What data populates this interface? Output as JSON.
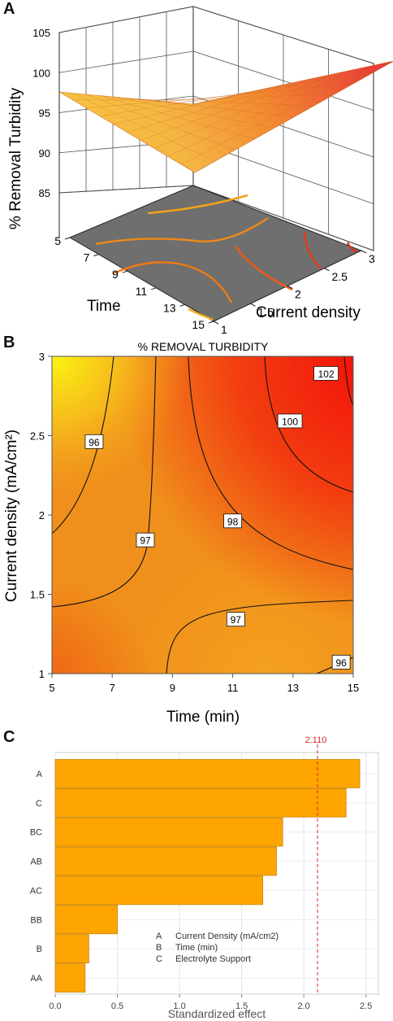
{
  "panel_labels": {
    "a": "A",
    "b": "B",
    "c": "C"
  },
  "chart_data": [
    {
      "type": "surface3d",
      "panel": "A",
      "title": "",
      "zlabel": "% Removal Turbidity",
      "xlabel": "Current density",
      "ylabel": "Time",
      "zticks": [
        85,
        90,
        95,
        100,
        105
      ],
      "xticks": [
        "1",
        "1.5",
        "2",
        "2.5",
        "3"
      ],
      "yticks": [
        "5",
        "7",
        "9",
        "11",
        "13",
        "15"
      ],
      "zlim": [
        85,
        105
      ],
      "corners": [
        {
          "current_density": 1,
          "time": 5,
          "removal": 96.6
        },
        {
          "current_density": 3,
          "time": 5,
          "removal": 95.9
        },
        {
          "current_density": 3,
          "time": 15,
          "removal": 102.4
        },
        {
          "current_density": 1,
          "time": 15,
          "removal": 94.7
        }
      ],
      "colors": {
        "surface_low": "#f7e06a",
        "surface_mid": "#f39a2a",
        "surface_high": "#e8333a",
        "floor": "#6e6e6e"
      }
    },
    {
      "type": "contour",
      "panel": "B",
      "title": "% REMOVAL TURBIDITY",
      "xlabel": "Time (min)",
      "ylabel": "Current density (mA/cm²)",
      "xticks": [
        "5",
        "7",
        "9",
        "11",
        "13",
        "15"
      ],
      "yticks": [
        "1",
        "1.5",
        "2",
        "2.5",
        "3"
      ],
      "xlim": [
        5,
        15
      ],
      "ylim": [
        1,
        3
      ],
      "contour_labels": [
        {
          "label": "102",
          "time": 14.1,
          "current_density": 2.89
        },
        {
          "label": "100",
          "time": 12.9,
          "current_density": 2.59
        },
        {
          "label": "98",
          "time": 11.0,
          "current_density": 1.96
        },
        {
          "label": "97",
          "time": 8.1,
          "current_density": 1.84
        },
        {
          "label": "96",
          "time": 6.4,
          "current_density": 2.46
        },
        {
          "label": "97",
          "time": 11.1,
          "current_density": 1.34
        },
        {
          "label": "96",
          "time": 14.6,
          "current_density": 1.07
        }
      ],
      "colors": {
        "low": "#f8ef1a",
        "mid": "#f39a1e",
        "high": "#f20d0d"
      }
    },
    {
      "type": "bar",
      "panel": "C",
      "orientation": "horizontal",
      "title": "",
      "xlabel": "Standardized effect",
      "ylabel": "",
      "categories": [
        "A",
        "C",
        "BC",
        "AB",
        "AC",
        "BB",
        "B",
        "AA"
      ],
      "values": [
        2.45,
        2.34,
        1.83,
        1.78,
        1.67,
        0.5,
        0.27,
        0.24
      ],
      "xlim": [
        0,
        2.6
      ],
      "xticks": [
        "0.0",
        "0.5",
        "1.0",
        "1.5",
        "2.0",
        "2.5"
      ],
      "reference_line": {
        "value": 2.11,
        "label": "2.110",
        "color": "#d62728"
      },
      "legend": [
        {
          "key": "A",
          "text": "Current Density (mA/cm2)"
        },
        {
          "key": "B",
          "text": "Time (min)"
        },
        {
          "key": "C",
          "text": "Electrolyte Support"
        }
      ],
      "bar_color": "#ffa500",
      "bar_edge": "#c98100"
    }
  ]
}
